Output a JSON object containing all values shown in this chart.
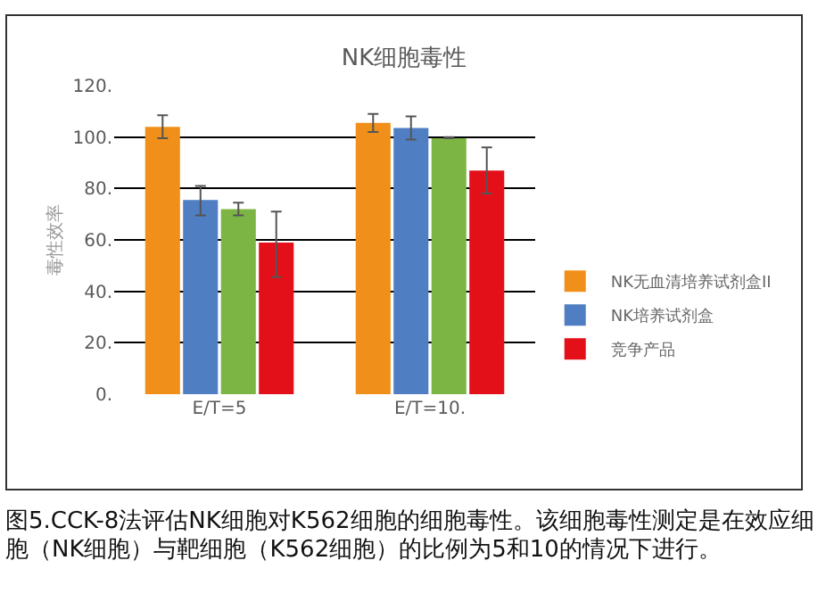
{
  "chart_data": {
    "type": "bar",
    "title": "NK细胞毒性",
    "ylabel": "毒性效率",
    "categories": [
      "E/T=5",
      "E/T=10."
    ],
    "series": [
      {
        "name": "NK无血清培养试剂盒II",
        "color": "#f0901a",
        "values": [
          104,
          105.5
        ],
        "errors": [
          [
            99.5,
            108.5
          ],
          [
            102,
            109
          ]
        ]
      },
      {
        "name": "NK培养试剂盒",
        "color": "#4f7fc2",
        "values": [
          75.5,
          103.5
        ],
        "errors": [
          [
            69.5,
            81
          ],
          [
            99,
            108
          ]
        ]
      },
      {
        "color": "#7db544",
        "values": [
          72,
          99.5
        ],
        "errors": [
          [
            69.5,
            74.5
          ],
          [
            99.5,
            100
          ]
        ]
      },
      {
        "name": "竞争产品",
        "color": "#e3101a",
        "values": [
          59,
          87
        ],
        "errors": [
          [
            45.5,
            71
          ],
          [
            78,
            96
          ]
        ]
      }
    ],
    "ylim": [
      0,
      120
    ],
    "yticks": [
      {
        "value": 0,
        "label": "0."
      },
      {
        "value": 20,
        "label": "20."
      },
      {
        "value": 40,
        "label": "40."
      },
      {
        "value": 60,
        "label": "60."
      },
      {
        "value": 80,
        "label": "80."
      },
      {
        "value": 100,
        "label": "100."
      },
      {
        "value": 120,
        "label": "120."
      }
    ],
    "grid": "y",
    "legend": "right",
    "annotations": [
      "图5.CCK-8法评估NK细胞对K562细胞的细胞毒性。该细胞毒性测定是在效应细胞（NK细胞）与靶细胞（K562细胞）的比例为5和10的情况下进行。"
    ]
  }
}
